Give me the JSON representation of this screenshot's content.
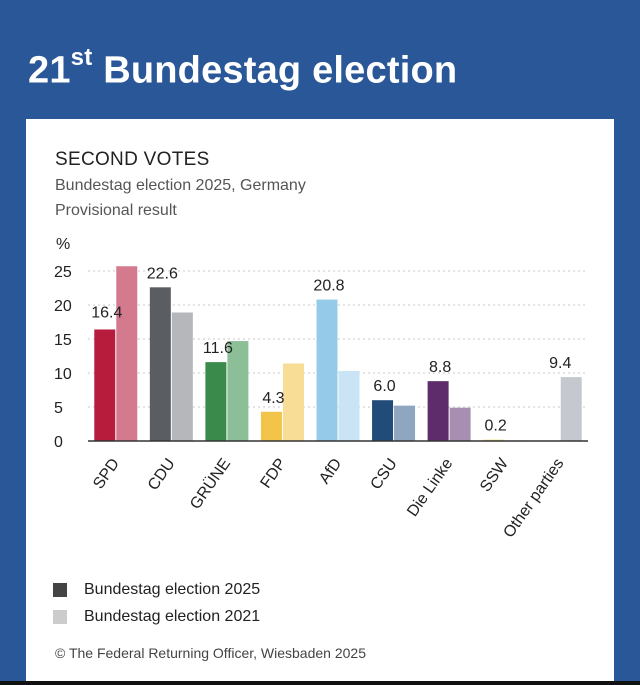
{
  "page": {
    "title_num": "21",
    "title_sup": "st",
    "title_rest": "Bundestag election"
  },
  "chart_data": {
    "type": "bar",
    "title": "SECOND VOTES",
    "subtitle": "Bundestag election 2025, Germany",
    "subtitle2": "Provisional result",
    "ylabel": "%",
    "ylim": [
      0,
      25
    ],
    "yticks": [
      0,
      5,
      10,
      15,
      20,
      25
    ],
    "grid": true,
    "categories": [
      "SPD",
      "CDU",
      "GRÜNE",
      "FDP",
      "AfD",
      "CSU",
      "Die Linke",
      "SSW",
      "Other parties"
    ],
    "series": [
      {
        "name": "Bundestag election 2025",
        "values": [
          16.4,
          22.6,
          11.6,
          4.3,
          20.8,
          6.0,
          8.8,
          0.2,
          9.4
        ],
        "labels": [
          "16.4",
          "22.6",
          "11.6",
          "4.3",
          "20.8",
          "6.0",
          "8.8",
          "0.2",
          "9.4"
        ],
        "colors": [
          "#b71c3c",
          "#5a5d62",
          "#3a8a4c",
          "#f2c44a",
          "#95cbe9",
          "#214c7a",
          "#5e2c6a",
          "#f2dc72",
          null
        ]
      },
      {
        "name": "Bundestag election 2021",
        "values": [
          25.7,
          18.9,
          14.7,
          11.4,
          10.3,
          5.2,
          4.9,
          0.1,
          9.4
        ],
        "colors": [
          "#d47a8f",
          "#b5b7ba",
          "#8cbf98",
          "#f7dd95",
          "#c9e5f5",
          "#8ea6bf",
          "#a88fb2",
          "#f7ecb5",
          "#c5c9cf"
        ]
      }
    ],
    "legend": [
      {
        "label": "Bundestag election 2025",
        "color": "#444444"
      },
      {
        "label": "Bundestag election 2021",
        "color": "#cccccc"
      }
    ],
    "legend_position": "bottom-left",
    "source": "© The Federal Returning Officer, Wiesbaden 2025"
  }
}
